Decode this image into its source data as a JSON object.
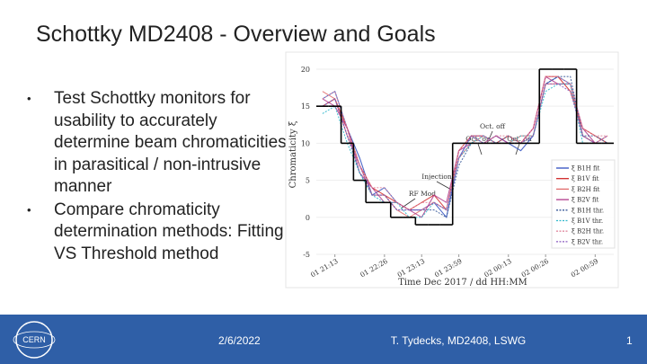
{
  "header": {
    "title": "Schottky MD2408 - Overview and Goals"
  },
  "bullets": [
    "Test Schottky monitors for usability to accurately determine beam chromaticities in parasitical / non-intrusive manner",
    "Compare chromaticity determination methods: Fitting VS Threshold method"
  ],
  "chart_data": {
    "type": "line",
    "y_label": "Chromaticity ξ",
    "x_label": "Time Dec 2017 / dd HH:MM",
    "categories": [
      null,
      "01 21:13",
      null,
      null,
      null,
      "01 22:26",
      null,
      null,
      "01 23:13",
      null,
      null,
      "01 23:59",
      null,
      null,
      null,
      "02 00:13",
      null,
      null,
      "02 00:26",
      null,
      null,
      null,
      "02 00:59",
      null
    ],
    "ylim": [
      -5,
      22
    ],
    "yticks": [
      -5,
      0,
      5,
      10,
      15,
      20
    ],
    "reference": {
      "color": "#000000",
      "values": [
        15,
        15,
        10,
        5,
        2,
        2,
        0,
        0,
        -1,
        -1,
        -1,
        10,
        10,
        10,
        10,
        10,
        10,
        10,
        20,
        20,
        20,
        10,
        10,
        10
      ]
    },
    "series": [
      {
        "name": "ξ B1H fit",
        "color": "#2f4fc0",
        "dash": false,
        "values": [
          16,
          17,
          12,
          8,
          3,
          4,
          2,
          1,
          1,
          2,
          0,
          8,
          11,
          10,
          11,
          10,
          9,
          11,
          18,
          19,
          18,
          11,
          10,
          10
        ]
      },
      {
        "name": "ξ B1V fit",
        "color": "#d02828",
        "dash": false,
        "values": [
          15,
          16,
          12,
          7,
          4,
          3,
          2,
          1,
          2,
          3,
          1,
          9,
          11,
          11,
          10,
          11,
          10,
          12,
          19,
          19,
          17,
          12,
          11,
          10
        ]
      },
      {
        "name": "ξ B2H fit",
        "color": "#e06a6a",
        "dash": false,
        "values": [
          17,
          16,
          11,
          7,
          3,
          3,
          1,
          0,
          1,
          2,
          1,
          8,
          10,
          11,
          10,
          10,
          11,
          11,
          18,
          18,
          18,
          11,
          10,
          11
        ]
      },
      {
        "name": "ξ B2V fit",
        "color": "#b03a8a",
        "dash": false,
        "values": [
          16,
          15,
          12,
          6,
          4,
          2,
          2,
          1,
          0,
          3,
          2,
          9,
          10,
          10,
          11,
          10,
          10,
          12,
          19,
          18,
          18,
          12,
          10,
          10
        ]
      },
      {
        "name": "ξ B1H thr.",
        "color": "#3a5a9a",
        "dash": true,
        "values": [
          15,
          16,
          11,
          6,
          3,
          3,
          1,
          1,
          1,
          1,
          0,
          7,
          10,
          10,
          10,
          11,
          10,
          11,
          18,
          19,
          19,
          11,
          11,
          10
        ]
      },
      {
        "name": "ξ B1V thr.",
        "color": "#30b8cc",
        "dash": true,
        "values": [
          14,
          15,
          10,
          6,
          3,
          2,
          2,
          0,
          0,
          2,
          1,
          8,
          10,
          11,
          10,
          10,
          11,
          11,
          17,
          18,
          18,
          10,
          10,
          10
        ]
      },
      {
        "name": "ξ B2H thr.",
        "color": "#e08aa0",
        "dash": true,
        "values": [
          16,
          17,
          12,
          7,
          4,
          4,
          2,
          1,
          2,
          2,
          1,
          9,
          11,
          10,
          11,
          11,
          10,
          12,
          19,
          19,
          18,
          12,
          11,
          11
        ]
      },
      {
        "name": "ξ B2V thr.",
        "color": "#8a5ac0",
        "dash": true,
        "values": [
          15,
          16,
          11,
          7,
          3,
          3,
          1,
          1,
          1,
          2,
          1,
          8,
          11,
          11,
          10,
          10,
          10,
          11,
          18,
          18,
          17,
          11,
          10,
          11
        ]
      }
    ],
    "annotations": [
      "Oct. off",
      "Oct. on",
      "Oct. on",
      "Injection",
      "RF Mod"
    ]
  },
  "footer": {
    "date": "2/6/2022",
    "author": "T. Tydecks, MD2408, LSWG",
    "page": "1"
  },
  "logo": {
    "text": "CERN"
  }
}
